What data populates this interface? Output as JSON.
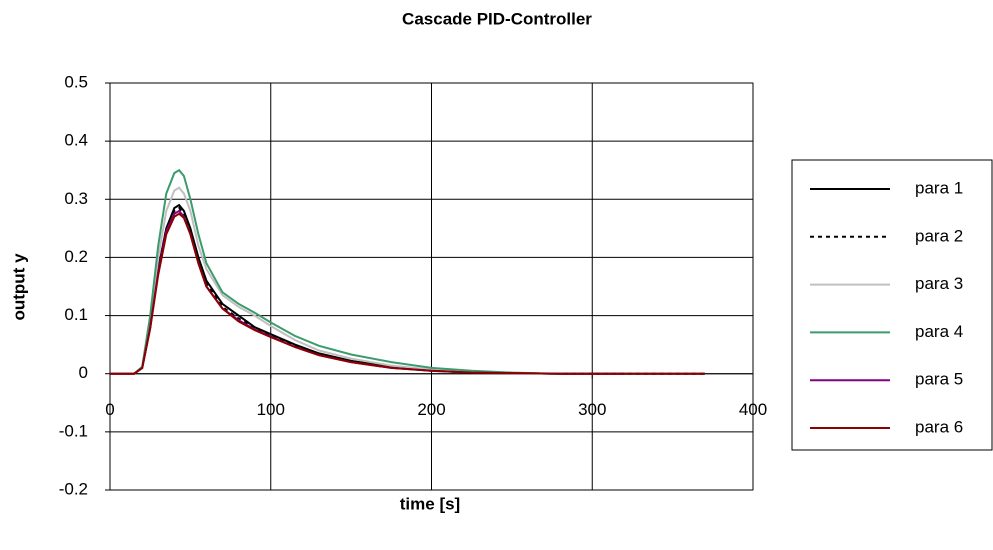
{
  "chart_data": {
    "type": "line",
    "title": "Cascade PID-Controller",
    "x_label": "time [s]",
    "y_label": "output y",
    "x": [
      0,
      15,
      20,
      25,
      30,
      35,
      40,
      43,
      46,
      50,
      55,
      60,
      70,
      80,
      90,
      100,
      115,
      130,
      150,
      175,
      200,
      225,
      250,
      280,
      320,
      370
    ],
    "series": [
      {
        "name": "para 1",
        "color": "#000000",
        "dashed": false,
        "values": [
          0,
          0,
          0.01,
          0.08,
          0.18,
          0.25,
          0.285,
          0.29,
          0.28,
          0.25,
          0.2,
          0.16,
          0.12,
          0.1,
          0.08,
          0.068,
          0.05,
          0.035,
          0.022,
          0.012,
          0.006,
          0.003,
          0.001,
          0,
          0,
          0
        ]
      },
      {
        "name": "para 2",
        "color": "#000000",
        "dashed": true,
        "values": [
          0,
          0,
          0.01,
          0.08,
          0.18,
          0.25,
          0.28,
          0.285,
          0.275,
          0.245,
          0.195,
          0.155,
          0.115,
          0.095,
          0.078,
          0.066,
          0.048,
          0.034,
          0.021,
          0.011,
          0.005,
          0.002,
          0.001,
          0,
          0,
          0
        ]
      },
      {
        "name": "para 3",
        "color": "#c0c0c0",
        "dashed": false,
        "values": [
          0,
          0,
          0.01,
          0.09,
          0.2,
          0.28,
          0.315,
          0.32,
          0.31,
          0.28,
          0.22,
          0.18,
          0.135,
          0.115,
          0.1,
          0.082,
          0.058,
          0.04,
          0.026,
          0.014,
          0.007,
          0.003,
          0.001,
          0,
          null,
          null
        ]
      },
      {
        "name": "para 4",
        "color": "#3c9b6c",
        "dashed": false,
        "values": [
          0,
          0,
          0.012,
          0.1,
          0.22,
          0.31,
          0.345,
          0.35,
          0.34,
          0.3,
          0.24,
          0.19,
          0.14,
          0.12,
          0.105,
          0.088,
          0.065,
          0.048,
          0.033,
          0.02,
          0.01,
          0.005,
          0.002,
          0,
          null,
          null
        ]
      },
      {
        "name": "para 5",
        "color": "#800080",
        "dashed": false,
        "values": [
          0,
          0,
          0.01,
          0.08,
          0.175,
          0.245,
          0.275,
          0.28,
          0.27,
          0.24,
          0.19,
          0.15,
          0.112,
          0.092,
          0.076,
          0.064,
          0.046,
          0.032,
          0.02,
          0.01,
          0.005,
          0.002,
          0.001,
          0,
          0,
          null
        ]
      },
      {
        "name": "para 6",
        "color": "#8b0000",
        "dashed": false,
        "values": [
          0,
          0,
          0.01,
          0.078,
          0.17,
          0.24,
          0.27,
          0.275,
          0.268,
          0.24,
          0.19,
          0.15,
          0.112,
          0.09,
          0.075,
          0.063,
          0.046,
          0.032,
          0.02,
          0.01,
          0.005,
          0.002,
          0.001,
          0,
          0,
          0
        ]
      }
    ],
    "xlim": [
      0,
      400
    ],
    "xticks": [
      0,
      100,
      200,
      300,
      400
    ],
    "ylim": [
      -0.2,
      0.5
    ],
    "yticks": [
      -0.2,
      -0.1,
      0,
      0.1,
      0.2,
      0.3,
      0.4,
      0.5
    ],
    "grid": true,
    "legend": "right"
  }
}
